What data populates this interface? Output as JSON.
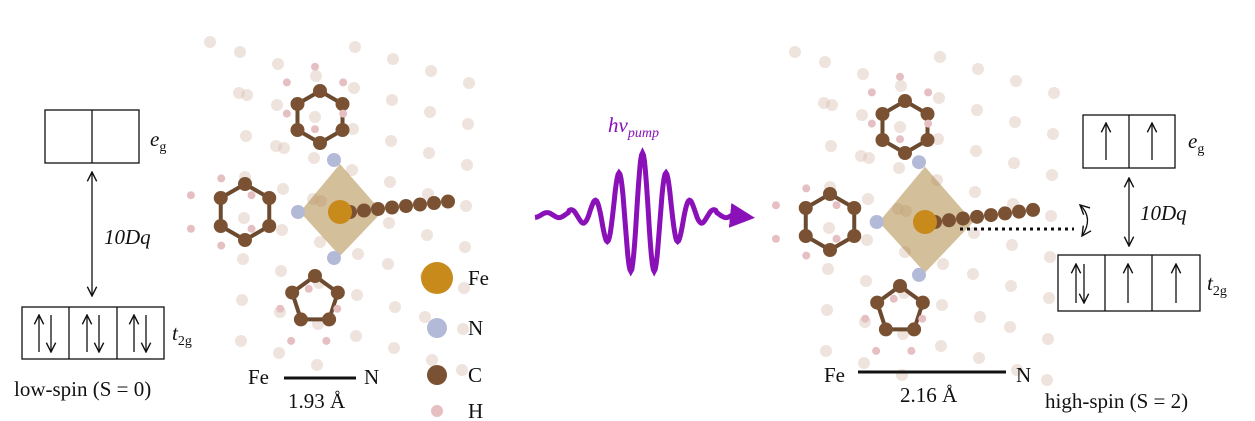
{
  "low_spin": {
    "eg_label": {
      "symbol": "e",
      "subscript": "g"
    },
    "splitting_label": "10Dq",
    "t2g_label": {
      "symbol": "t",
      "subscript": "2g"
    },
    "caption": "low-spin (S = 0)",
    "bond": {
      "left": "Fe",
      "right": "N",
      "length": "1.93 Å"
    }
  },
  "legend": [
    {
      "label": "Fe"
    },
    {
      "label": "N"
    },
    {
      "label": "C"
    },
    {
      "label": "H"
    }
  ],
  "pump": {
    "symbol": "hν",
    "subscript": "pump"
  },
  "high_spin": {
    "eg_label": {
      "symbol": "e",
      "subscript": "g"
    },
    "splitting_label": "10Dq",
    "t2g_label": {
      "symbol": "t",
      "subscript": "2g"
    },
    "caption": "high-spin (S = 2)",
    "bond": {
      "left": "Fe",
      "right": "N",
      "length": "2.16 Å"
    }
  }
}
